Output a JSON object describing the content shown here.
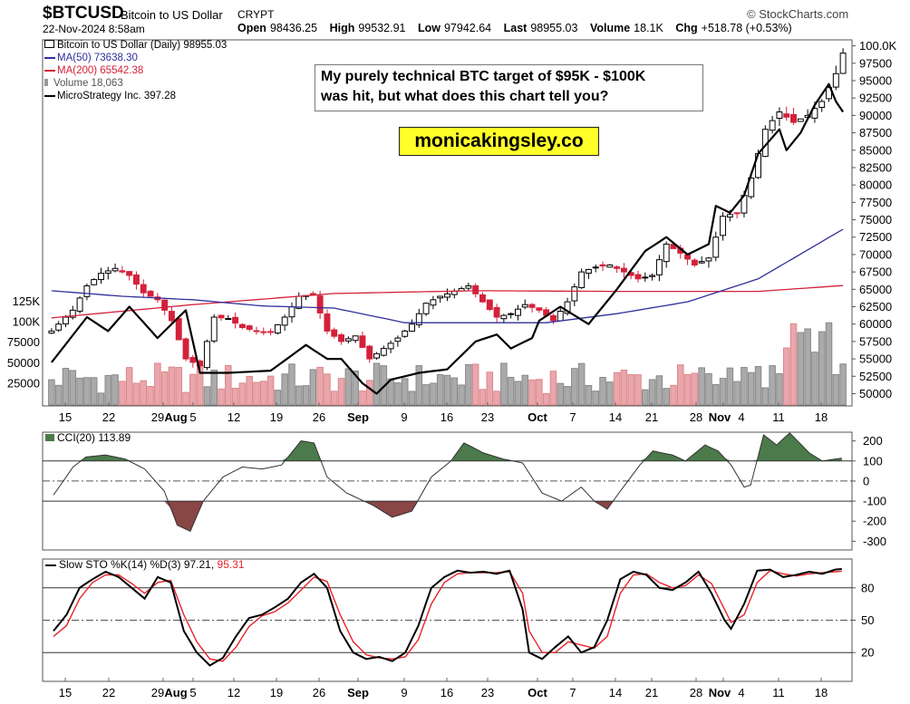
{
  "header": {
    "symbol": "$BTCUSD",
    "description": "Bitcoin to US Dollar",
    "exchange": "CRYPT",
    "source": "© StockCharts.com",
    "date": "22-Nov-2024 8:58am",
    "open_label": "Open",
    "open": "98436.25",
    "high_label": "High",
    "high": "99532.91",
    "low_label": "Low",
    "low": "97942.64",
    "last_label": "Last",
    "last": "98955.03",
    "volume_label": "Volume",
    "volume": "18.1K",
    "chg_label": "Chg",
    "chg": "+518.78 (+0.53%)"
  },
  "legend": {
    "price": "Bitcoin to US Dollar (Daily) 98955.03",
    "ma50": "MA(50) 73638.30",
    "ma200": "MA(200) 65542.38",
    "volume": "Volume 18,063",
    "mstr": "MicroStrategy Inc. 397.28"
  },
  "annotation": {
    "callout_line1": "My purely technical BTC target of $95K - $100K",
    "callout_line2": "was hit, but what does this chart tell you?",
    "site": "monicakingsley.co"
  },
  "colors": {
    "up": "#000000",
    "down": "#d4213a",
    "ma50": "#2f2f9a",
    "ma200": "#d4213a",
    "mstr": "#000000",
    "vol_up": "#aaaaaa",
    "vol_down": "#e9a6ad",
    "cci_fill": "#4b7a4b",
    "cci_neg": "#8a4545",
    "stoch_k": "#000000",
    "stoch_d": "#e8232b"
  },
  "chart_data": [
    {
      "type": "candlestick",
      "title": "Bitcoin to US Dollar (Daily)",
      "x_labels": [
        "15",
        "22",
        "29Aug",
        "5",
        "12",
        "19",
        "26",
        "Sep",
        "9",
        "16",
        "23",
        "Oct",
        "7",
        "14",
        "21",
        "28",
        "Nov4",
        "11",
        "18"
      ],
      "ylim": [
        48500,
        100600
      ],
      "y_ticks": [
        "100.0K",
        "97500",
        "95000",
        "92500",
        "90000",
        "87500",
        "85000",
        "82500",
        "80000",
        "77500",
        "75000",
        "72500",
        "70000",
        "67500",
        "65000",
        "62500",
        "60000",
        "57500",
        "55000",
        "52500",
        "50000"
      ],
      "ohlc_anchors_close": [
        [
          0,
          59000
        ],
        [
          3,
          62000
        ],
        [
          5,
          65500
        ],
        [
          7,
          67300
        ],
        [
          9,
          68000
        ],
        [
          11,
          67000
        ],
        [
          13,
          64500
        ],
        [
          15,
          63500
        ],
        [
          17,
          60500
        ],
        [
          19,
          55000
        ],
        [
          21,
          54000
        ],
        [
          23,
          61000
        ],
        [
          25,
          60800
        ],
        [
          27,
          59500
        ],
        [
          29,
          59000
        ],
        [
          31,
          58800
        ],
        [
          33,
          61000
        ],
        [
          35,
          64000
        ],
        [
          37,
          64200
        ],
        [
          39,
          59000
        ],
        [
          41,
          57500
        ],
        [
          43,
          58300
        ],
        [
          45,
          55000
        ],
        [
          47,
          56500
        ],
        [
          49,
          58000
        ],
        [
          51,
          60000
        ],
        [
          53,
          63000
        ],
        [
          55,
          64000
        ],
        [
          57,
          64700
        ],
        [
          59,
          65500
        ],
        [
          61,
          63200
        ],
        [
          63,
          61000
        ],
        [
          65,
          61500
        ],
        [
          67,
          62800
        ],
        [
          69,
          62000
        ],
        [
          71,
          60500
        ],
        [
          73,
          63200
        ],
        [
          75,
          67500
        ],
        [
          77,
          68200
        ],
        [
          79,
          68500
        ],
        [
          81,
          67500
        ],
        [
          83,
          66500
        ],
        [
          85,
          67000
        ],
        [
          87,
          71500
        ],
        [
          89,
          70200
        ],
        [
          91,
          68500
        ],
        [
          93,
          69500
        ],
        [
          95,
          75500
        ],
        [
          97,
          76000
        ],
        [
          99,
          81000
        ],
        [
          101,
          88000
        ],
        [
          103,
          90500
        ],
        [
          105,
          89000
        ],
        [
          107,
          90000
        ],
        [
          109,
          92000
        ],
        [
          111,
          96000
        ],
        [
          112,
          98955
        ]
      ],
      "moving_averages": {
        "ma50_last": 73638.3,
        "ma50_anchors": [
          [
            0,
            64800
          ],
          [
            10,
            64000
          ],
          [
            20,
            63500
          ],
          [
            30,
            62600
          ],
          [
            40,
            62300
          ],
          [
            50,
            60200
          ],
          [
            60,
            60200
          ],
          [
            70,
            60200
          ],
          [
            80,
            61500
          ],
          [
            90,
            63200
          ],
          [
            100,
            66500
          ],
          [
            112,
            73638
          ]
        ],
        "ma200_last": 65542.38,
        "ma200_anchors": [
          [
            0,
            60900
          ],
          [
            20,
            62800
          ],
          [
            40,
            64400
          ],
          [
            60,
            64800
          ],
          [
            80,
            64700
          ],
          [
            100,
            64700
          ],
          [
            112,
            65542
          ]
        ]
      },
      "mstr_anchors": [
        [
          0,
          54500
        ],
        [
          5,
          61000
        ],
        [
          8,
          59000
        ],
        [
          11,
          62500
        ],
        [
          15,
          58000
        ],
        [
          19,
          62000
        ],
        [
          21,
          53000
        ],
        [
          25,
          53000
        ],
        [
          31,
          53300
        ],
        [
          36,
          57000
        ],
        [
          39,
          55000
        ],
        [
          41,
          55000
        ],
        [
          44,
          51500
        ],
        [
          46,
          50000
        ],
        [
          48,
          52000
        ],
        [
          52,
          53000
        ],
        [
          56,
          53500
        ],
        [
          60,
          57500
        ],
        [
          63,
          58500
        ],
        [
          65,
          56500
        ],
        [
          68,
          58000
        ],
        [
          69,
          60500
        ],
        [
          72,
          62500
        ],
        [
          76,
          60000
        ],
        [
          80,
          65000
        ],
        [
          84,
          70500
        ],
        [
          87,
          72500
        ],
        [
          90,
          70000
        ],
        [
          93,
          71500
        ],
        [
          94,
          77000
        ],
        [
          96,
          76000
        ],
        [
          98,
          78500
        ],
        [
          100,
          84500
        ],
        [
          103,
          88000
        ],
        [
          104,
          85000
        ],
        [
          106,
          87500
        ],
        [
          108,
          91500
        ],
        [
          110,
          94500
        ],
        [
          111,
          92000
        ],
        [
          112,
          90500
        ]
      ],
      "volume": {
        "label": "Volume 18,063",
        "y_ticks": [
          "125K",
          "100K",
          "75000",
          "50000",
          "25000"
        ]
      }
    },
    {
      "type": "area",
      "title": "CCI(20) 113.89",
      "last": 113.89,
      "y_ticks": [
        "200",
        "100",
        "0",
        "-100",
        "-200",
        "-300"
      ],
      "ylim": [
        -330,
        230
      ],
      "anchors": [
        [
          0,
          -70
        ],
        [
          3,
          70
        ],
        [
          5,
          120
        ],
        [
          8,
          130
        ],
        [
          11,
          110
        ],
        [
          14,
          60
        ],
        [
          17,
          -50
        ],
        [
          19,
          -220
        ],
        [
          21,
          -250
        ],
        [
          23,
          -100
        ],
        [
          26,
          20
        ],
        [
          29,
          70
        ],
        [
          32,
          60
        ],
        [
          35,
          80
        ],
        [
          38,
          200
        ],
        [
          40,
          190
        ],
        [
          42,
          20
        ],
        [
          45,
          -60
        ],
        [
          49,
          -120
        ],
        [
          52,
          -180
        ],
        [
          55,
          -150
        ],
        [
          58,
          20
        ],
        [
          61,
          100
        ],
        [
          63,
          190
        ],
        [
          66,
          140
        ],
        [
          69,
          110
        ],
        [
          72,
          90
        ],
        [
          75,
          -60
        ],
        [
          78,
          -100
        ],
        [
          81,
          -30
        ],
        [
          83,
          -100
        ],
        [
          85,
          -140
        ],
        [
          87,
          -50
        ],
        [
          90,
          80
        ],
        [
          92,
          150
        ],
        [
          95,
          130
        ],
        [
          97,
          100
        ],
        [
          100,
          180
        ],
        [
          102,
          150
        ],
        [
          104,
          80
        ],
        [
          106,
          -30
        ],
        [
          107,
          -20
        ],
        [
          109,
          230
        ],
        [
          111,
          180
        ],
        [
          113,
          240
        ],
        [
          116,
          140
        ],
        [
          118,
          100
        ],
        [
          120,
          110
        ],
        [
          121,
          114
        ]
      ]
    },
    {
      "type": "line",
      "title": "Slow STO %K(14) %D(3) 97.21, 95.31",
      "k_last": 97.21,
      "d_last": 95.31,
      "y_ticks": [
        "80",
        "50",
        "20"
      ],
      "ylim": [
        0,
        100
      ],
      "k_anchors": [
        [
          0,
          40
        ],
        [
          2,
          55
        ],
        [
          4,
          80
        ],
        [
          6,
          88
        ],
        [
          8,
          95
        ],
        [
          10,
          90
        ],
        [
          12,
          80
        ],
        [
          14,
          70
        ],
        [
          16,
          90
        ],
        [
          18,
          85
        ],
        [
          20,
          40
        ],
        [
          22,
          20
        ],
        [
          24,
          8
        ],
        [
          26,
          15
        ],
        [
          28,
          35
        ],
        [
          30,
          52
        ],
        [
          32,
          55
        ],
        [
          34,
          62
        ],
        [
          36,
          70
        ],
        [
          38,
          85
        ],
        [
          40,
          93
        ],
        [
          42,
          80
        ],
        [
          44,
          40
        ],
        [
          46,
          20
        ],
        [
          48,
          14
        ],
        [
          50,
          16
        ],
        [
          52,
          12
        ],
        [
          54,
          20
        ],
        [
          56,
          45
        ],
        [
          58,
          80
        ],
        [
          60,
          90
        ],
        [
          62,
          96
        ],
        [
          64,
          94
        ],
        [
          66,
          95
        ],
        [
          68,
          93
        ],
        [
          70,
          96
        ],
        [
          72,
          60
        ],
        [
          73,
          20
        ],
        [
          75,
          14
        ],
        [
          77,
          25
        ],
        [
          79,
          35
        ],
        [
          81,
          20
        ],
        [
          83,
          25
        ],
        [
          85,
          50
        ],
        [
          87,
          88
        ],
        [
          89,
          95
        ],
        [
          91,
          92
        ],
        [
          93,
          80
        ],
        [
          95,
          78
        ],
        [
          97,
          85
        ],
        [
          99,
          95
        ],
        [
          101,
          75
        ],
        [
          103,
          50
        ],
        [
          104,
          42
        ],
        [
          106,
          65
        ],
        [
          108,
          96
        ],
        [
          110,
          97
        ],
        [
          112,
          90
        ],
        [
          114,
          92
        ],
        [
          116,
          95
        ],
        [
          118,
          93
        ],
        [
          120,
          97
        ]
      ],
      "d_anchors": [
        [
          0,
          35
        ],
        [
          2,
          45
        ],
        [
          4,
          70
        ],
        [
          6,
          85
        ],
        [
          8,
          92
        ],
        [
          10,
          92
        ],
        [
          12,
          84
        ],
        [
          14,
          75
        ],
        [
          16,
          85
        ],
        [
          18,
          87
        ],
        [
          20,
          55
        ],
        [
          22,
          30
        ],
        [
          24,
          14
        ],
        [
          26,
          12
        ],
        [
          28,
          25
        ],
        [
          30,
          44
        ],
        [
          32,
          54
        ],
        [
          34,
          58
        ],
        [
          36,
          66
        ],
        [
          38,
          78
        ],
        [
          40,
          90
        ],
        [
          42,
          86
        ],
        [
          44,
          55
        ],
        [
          46,
          30
        ],
        [
          48,
          18
        ],
        [
          50,
          15
        ],
        [
          52,
          14
        ],
        [
          54,
          16
        ],
        [
          56,
          32
        ],
        [
          58,
          65
        ],
        [
          60,
          85
        ],
        [
          62,
          93
        ],
        [
          64,
          94
        ],
        [
          66,
          94
        ],
        [
          68,
          94
        ],
        [
          70,
          95
        ],
        [
          72,
          75
        ],
        [
          73,
          40
        ],
        [
          75,
          20
        ],
        [
          77,
          20
        ],
        [
          79,
          30
        ],
        [
          81,
          27
        ],
        [
          83,
          24
        ],
        [
          85,
          35
        ],
        [
          87,
          75
        ],
        [
          89,
          92
        ],
        [
          91,
          93
        ],
        [
          93,
          85
        ],
        [
          95,
          80
        ],
        [
          97,
          82
        ],
        [
          99,
          92
        ],
        [
          101,
          84
        ],
        [
          103,
          60
        ],
        [
          104,
          48
        ],
        [
          106,
          55
        ],
        [
          108,
          85
        ],
        [
          110,
          96
        ],
        [
          112,
          93
        ],
        [
          114,
          91
        ],
        [
          116,
          93
        ],
        [
          118,
          94
        ],
        [
          120,
          95
        ]
      ]
    }
  ]
}
